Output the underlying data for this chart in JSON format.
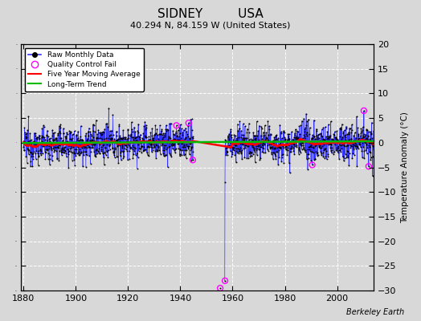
{
  "title_line1": "SIDNEY         USA",
  "title_line2": "40.294 N, 84.159 W (United States)",
  "ylabel": "Temperature Anomaly (°C)",
  "xlim": [
    1879,
    2014
  ],
  "ylim": [
    -30,
    20
  ],
  "yticks": [
    -30,
    -25,
    -20,
    -15,
    -10,
    -5,
    0,
    5,
    10,
    15,
    20
  ],
  "xticks": [
    1880,
    1900,
    1920,
    1940,
    1960,
    1980,
    2000
  ],
  "bg_color": "#d8d8d8",
  "grid_color": "#ffffff",
  "raw_color": "#3333ff",
  "ma_color": "#ff0000",
  "trend_color": "#00bb00",
  "qc_color": "#ff00ff",
  "dot_color": "#000000",
  "watermark": "Berkeley Earth",
  "seed": 12345,
  "start_year": 1880,
  "end_year": 2013,
  "gap_start": 1945,
  "gap_end": 1957,
  "spike_year": 1955,
  "spike_val": -29.5,
  "spike2_year": 1957,
  "spike2_val": -28.0
}
